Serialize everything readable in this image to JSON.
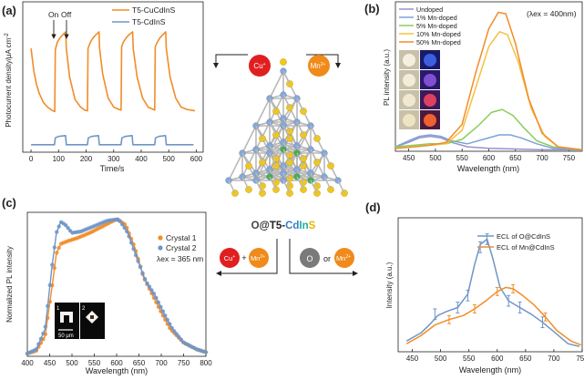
{
  "panel_labels": [
    "(a)",
    "(b)",
    "(c)",
    "(d)"
  ],
  "colors": {
    "orange": "#f28c28",
    "blue": "#6f95c8",
    "cu_badge": "#e02020",
    "mn_badge": "#f08a1a",
    "o_badge": "#7a7a7a",
    "text_cd": "#3a7cc6",
    "text_in": "#19b0a0",
    "text_s": "#e6b800"
  },
  "center": {
    "label_o": "O",
    "label_at": "@T5-",
    "label_cd": "Cd",
    "label_in": "In",
    "label_s": "S",
    "badge_cu": "Cu",
    "badge_cu_sup": "+",
    "badge_mn": "Mn",
    "badge_mn_sup": "2+",
    "badge_o": "O",
    "plus": "+",
    "or": "or"
  },
  "chart_data": [
    {
      "id": "a",
      "type": "line",
      "xlabel": "Time/s",
      "ylabel": "Photocurrent density/μA cm",
      "ylabel_sup": "-2",
      "xlim": [
        -30,
        625
      ],
      "ylim": [
        0,
        10
      ],
      "xticks": [
        0,
        100,
        200,
        300,
        400,
        500,
        600
      ],
      "annotations": [
        {
          "text": "On",
          "x": 85
        },
        {
          "text": "Off",
          "x": 128
        }
      ],
      "series": [
        {
          "name": "T5-CuCdInS",
          "color": "#f28c28",
          "x": [
            0,
            10,
            20,
            30,
            45,
            60,
            75,
            86,
            88,
            95,
            105,
            115,
            126,
            128,
            140,
            160,
            180,
            195,
            205,
            207,
            215,
            225,
            235,
            247,
            249,
            260,
            280,
            300,
            318,
            327,
            329,
            335,
            345,
            355,
            369,
            371,
            385,
            405,
            425,
            443,
            449,
            451,
            458,
            468,
            478,
            489,
            491,
            505,
            525,
            545,
            565,
            580,
            595
          ],
          "y": [
            6.9,
            5.4,
            4.5,
            3.9,
            3.3,
            3.0,
            2.8,
            2.7,
            6.8,
            7.3,
            7.6,
            7.8,
            8.0,
            6.9,
            5.0,
            3.5,
            3.0,
            2.8,
            2.75,
            6.9,
            7.3,
            7.6,
            7.8,
            8.0,
            6.9,
            5.2,
            3.6,
            3.0,
            2.85,
            2.8,
            7.0,
            7.3,
            7.6,
            7.8,
            8.0,
            6.9,
            5.0,
            3.6,
            3.0,
            2.85,
            2.8,
            7.0,
            7.3,
            7.6,
            7.8,
            8.0,
            6.9,
            5.0,
            3.6,
            3.0,
            2.85,
            2.8,
            2.75
          ]
        },
        {
          "name": "T5-CdInS",
          "color": "#6f95c8",
          "x": [
            0,
            85,
            88,
            100,
            125,
            128,
            205,
            208,
            220,
            245,
            248,
            327,
            330,
            342,
            367,
            370,
            449,
            452,
            464,
            488,
            491,
            590
          ],
          "y": [
            0.5,
            0.5,
            0.95,
            1.05,
            1.1,
            0.5,
            0.5,
            0.95,
            1.05,
            1.1,
            0.5,
            0.5,
            0.95,
            1.05,
            1.1,
            0.5,
            0.5,
            0.95,
            1.05,
            1.1,
            0.5,
            0.5
          ]
        }
      ]
    },
    {
      "id": "b",
      "type": "line",
      "xlabel": "Wavelength (nm)",
      "ylabel": "PL intensity (a.u.)",
      "annotation": "(λex = 400nm)",
      "xlim": [
        425,
        775
      ],
      "ylim": [
        0,
        100
      ],
      "xticks": [
        450,
        500,
        550,
        600,
        650,
        700,
        750
      ],
      "series": [
        {
          "name": "Undoped",
          "color": "#9b8fd0",
          "x": [
            425,
            450,
            470,
            490,
            510,
            530,
            560,
            600,
            650,
            700,
            775
          ],
          "y": [
            3,
            6,
            9,
            10,
            9,
            6,
            3,
            2,
            1.5,
            1,
            1
          ]
        },
        {
          "name": "1%   Mn-doped",
          "color": "#7aa3d8",
          "x": [
            425,
            450,
            470,
            490,
            510,
            530,
            560,
            590,
            620,
            640,
            660,
            690,
            720,
            775
          ],
          "y": [
            3,
            7,
            10,
            11,
            10,
            7,
            5,
            8,
            11,
            11,
            9,
            5,
            2,
            1
          ]
        },
        {
          "name": "5%   Mn-doped",
          "color": "#8ccc5a",
          "x": [
            425,
            460,
            490,
            520,
            550,
            580,
            605,
            625,
            645,
            665,
            690,
            720,
            775
          ],
          "y": [
            3,
            4,
            5,
            5,
            8,
            17,
            26,
            28,
            24,
            16,
            7,
            3,
            1
          ]
        },
        {
          "name": "10%  Mn-doped",
          "color": "#f5c042",
          "x": [
            425,
            460,
            490,
            520,
            550,
            575,
            600,
            620,
            635,
            655,
            680,
            705,
            730,
            775
          ],
          "y": [
            2,
            3,
            4,
            5,
            14,
            42,
            70,
            80,
            78,
            60,
            28,
            10,
            3,
            1
          ]
        },
        {
          "name": "50%  Mn-doped",
          "color": "#f28c28",
          "x": [
            425,
            460,
            490,
            520,
            550,
            575,
            600,
            618,
            632,
            650,
            675,
            700,
            730,
            775
          ],
          "y": [
            2,
            3,
            4,
            6,
            18,
            52,
            82,
            93,
            92,
            72,
            35,
            12,
            3,
            1
          ]
        }
      ]
    },
    {
      "id": "c",
      "type": "line",
      "xlabel": "Wavelength (nm)",
      "ylabel": "Normalized PL intensity",
      "annotation": "λex = 365 nm",
      "scale_bar": "50 μm",
      "inset_labels": [
        "1",
        "2"
      ],
      "xlim": [
        400,
        800
      ],
      "ylim": [
        0,
        1.05
      ],
      "xticks": [
        400,
        450,
        500,
        550,
        600,
        650,
        700,
        750,
        800
      ],
      "series": [
        {
          "name": "Crystal 1",
          "color": "#f28c28",
          "x": [
            400,
            420,
            440,
            455,
            465,
            475,
            490,
            510,
            540,
            570,
            600,
            620,
            640,
            660,
            680,
            700,
            720,
            750,
            780,
            800
          ],
          "y": [
            0.02,
            0.04,
            0.15,
            0.5,
            0.75,
            0.82,
            0.84,
            0.86,
            0.9,
            0.95,
            1.0,
            0.96,
            0.8,
            0.58,
            0.45,
            0.32,
            0.2,
            0.1,
            0.05,
            0.03
          ]
        },
        {
          "name": "Crystal 2",
          "color": "#6f95c8",
          "x": [
            400,
            420,
            440,
            455,
            465,
            475,
            485,
            500,
            520,
            550,
            580,
            605,
            625,
            645,
            665,
            685,
            705,
            725,
            750,
            780,
            800
          ],
          "y": [
            0.02,
            0.05,
            0.2,
            0.65,
            0.9,
            0.98,
            0.96,
            0.9,
            0.91,
            0.95,
            0.99,
            1.0,
            0.9,
            0.72,
            0.55,
            0.45,
            0.32,
            0.2,
            0.1,
            0.05,
            0.03
          ]
        }
      ]
    },
    {
      "id": "d",
      "type": "line",
      "xlabel": "Wavelength (nm)",
      "ylabel": "Intensity (a.u.)",
      "xlim": [
        425,
        750
      ],
      "ylim": [
        0,
        100
      ],
      "xticks": [
        450,
        500,
        550,
        600,
        650,
        700,
        750
      ],
      "series": [
        {
          "name": "ECL of O@CdInS",
          "color": "#6f95c8",
          "x": [
            440,
            465,
            480,
            495,
            510,
            530,
            548,
            560,
            570,
            582,
            592,
            605,
            620,
            640,
            660,
            680,
            700,
            725,
            745
          ],
          "y": [
            8,
            14,
            20,
            27,
            30,
            33,
            43,
            65,
            80,
            84,
            70,
            48,
            38,
            33,
            28,
            22,
            15,
            6,
            4
          ]
        },
        {
          "name": "ECL of Mn@CdInS",
          "color": "#f28c28",
          "x": [
            440,
            465,
            490,
            515,
            540,
            560,
            580,
            600,
            615,
            628,
            645,
            665,
            685,
            705,
            730,
            748
          ],
          "y": [
            6,
            12,
            20,
            24,
            27,
            32,
            38,
            45,
            48,
            47,
            42,
            35,
            26,
            16,
            8,
            5
          ]
        }
      ],
      "error_points": [
        {
          "x": 490,
          "y": 28,
          "e": 4
        },
        {
          "x": 530,
          "y": 33,
          "e": 4
        },
        {
          "x": 548,
          "y": 42,
          "e": 4
        },
        {
          "x": 570,
          "y": 78,
          "e": 4
        },
        {
          "x": 582,
          "y": 84,
          "e": 4
        },
        {
          "x": 620,
          "y": 38,
          "e": 4
        },
        {
          "x": 640,
          "y": 33,
          "e": 4
        },
        {
          "x": 680,
          "y": 22,
          "e": 4
        },
        {
          "x": 515,
          "y": 24,
          "e": 3
        },
        {
          "x": 560,
          "y": 32,
          "e": 3
        },
        {
          "x": 600,
          "y": 45,
          "e": 3
        },
        {
          "x": 628,
          "y": 47,
          "e": 3
        },
        {
          "x": 685,
          "y": 26,
          "e": 3
        }
      ]
    }
  ]
}
